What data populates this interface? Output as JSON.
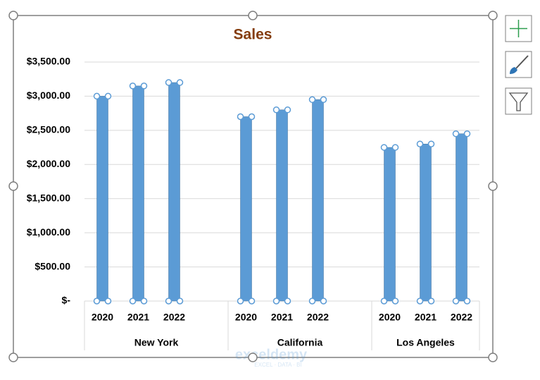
{
  "chart_data": {
    "type": "bar",
    "title": "Sales",
    "categories": [
      "2020",
      "2021",
      "2022",
      null,
      "2020",
      "2021",
      "2022",
      null,
      "2020",
      "2021",
      "2022"
    ],
    "groups": [
      "New York",
      "California",
      "Los Angeles"
    ],
    "values": [
      3000,
      3150,
      3200,
      null,
      2700,
      2800,
      2950,
      null,
      2250,
      2300,
      2450
    ],
    "color": "#5b9bd5",
    "ylim": [
      0,
      3500
    ],
    "yticks": [
      {
        "value": 0,
        "label": "$-"
      },
      {
        "value": 500,
        "label": "$500.00"
      },
      {
        "value": 1000,
        "label": "$1,000.00"
      },
      {
        "value": 1500,
        "label": "$1,500.00"
      },
      {
        "value": 2000,
        "label": "$2,000.00"
      },
      {
        "value": 2500,
        "label": "$2,500.00"
      },
      {
        "value": 3000,
        "label": "$3,000.00"
      },
      {
        "value": 3500,
        "label": "$3,500.00"
      }
    ],
    "grid": true
  },
  "watermark": {
    "name": "exceldemy",
    "tagline": "EXCEL · DATA · BI"
  }
}
